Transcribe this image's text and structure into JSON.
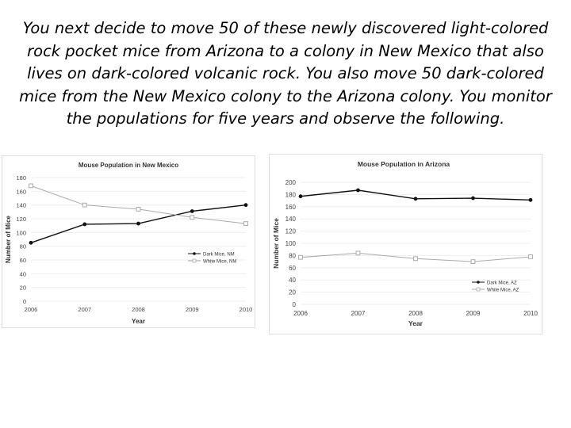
{
  "caption": {
    "lines": [
      "You next decide to move 50 of these newly discovered light-colored",
      "rock pocket mice from Arizona to a colony in New Mexico that also",
      "lives on dark-colored volcanic rock. You also move 50 dark-colored",
      "mice from the New Mexico colony to the Arizona colony. You monitor",
      "the populations for five years and observe the following."
    ]
  },
  "colors": {
    "dark_series": "#111111",
    "white_series": "#aaaaaa",
    "grid": "#eeeeee",
    "axis_text": "#444444"
  },
  "chart_data": [
    {
      "type": "line",
      "title": "Mouse Population in New Mexico",
      "xlabel": "Year",
      "ylabel": "Number of Mice",
      "categories": [
        "2006",
        "2007",
        "2008",
        "2009",
        "2010"
      ],
      "ylim": [
        0,
        180
      ],
      "yticks": [
        0,
        20,
        40,
        60,
        80,
        100,
        120,
        140,
        160,
        180
      ],
      "grid": true,
      "legend_position": "middle-right",
      "series": [
        {
          "name": "Dark Mice, NM",
          "marker": "filled-circle",
          "values": [
            85,
            112,
            113,
            131,
            140
          ]
        },
        {
          "name": "White Mice, NM",
          "marker": "hollow-square",
          "values": [
            168,
            140,
            134,
            122,
            113
          ]
        }
      ]
    },
    {
      "type": "line",
      "title": "Mouse Population in Arizona",
      "xlabel": "Year",
      "ylabel": "Number of Mice",
      "categories": [
        "2006",
        "2007",
        "2008",
        "2009",
        "2010"
      ],
      "ylim": [
        0,
        200
      ],
      "yticks": [
        0,
        20,
        40,
        60,
        80,
        100,
        120,
        140,
        160,
        180,
        200
      ],
      "grid": true,
      "legend_position": "bottom-right",
      "series": [
        {
          "name": "Dark Mice, AZ",
          "marker": "filled-circle",
          "values": [
            177,
            187,
            173,
            174,
            171
          ]
        },
        {
          "name": "White Mice, AZ",
          "marker": "hollow-square",
          "values": [
            77,
            84,
            75,
            70,
            78
          ]
        }
      ]
    }
  ]
}
